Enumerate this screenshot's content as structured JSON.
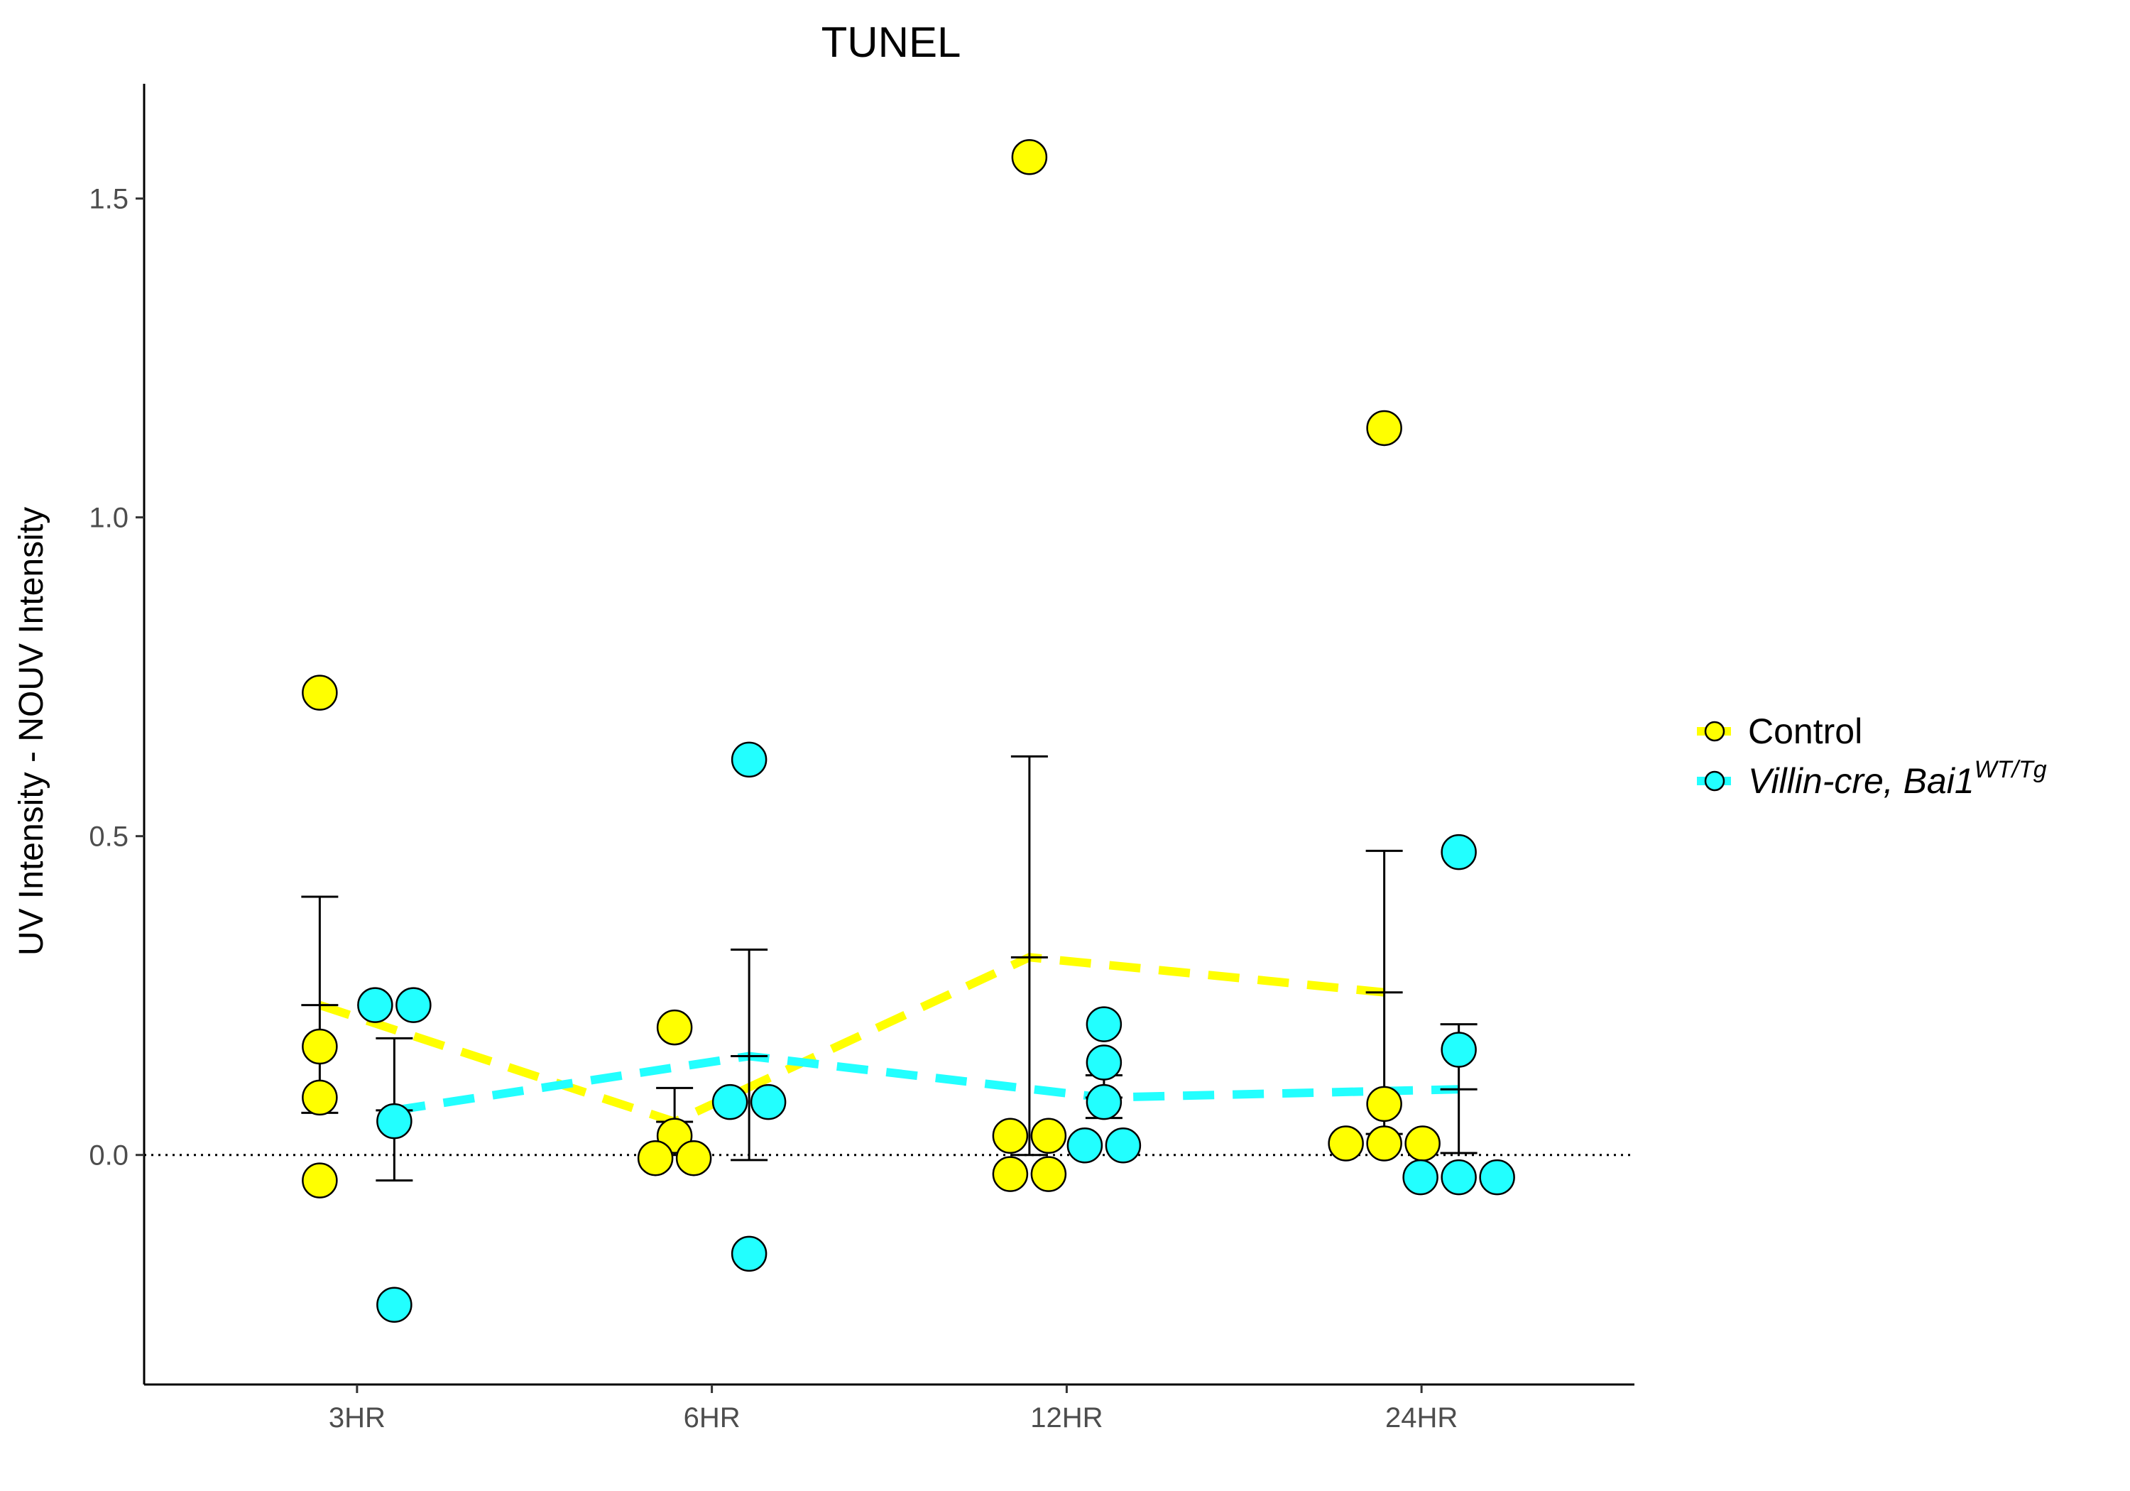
{
  "chart_data": {
    "type": "scatter",
    "title": "TUNEL",
    "xlabel": "",
    "ylabel": "UV Intensity - NOUV Intensity",
    "categories": [
      "3HR",
      "6HR",
      "12HR",
      "24HR"
    ],
    "ylim": [
      -0.36,
      1.68
    ],
    "yticks": [
      0.0,
      0.5,
      1.0,
      1.5
    ],
    "ytick_labels": [
      "0.0",
      "0.5",
      "1.0",
      "1.5"
    ],
    "reference_line": 0.0,
    "grid": false,
    "legend_position": "right",
    "series": [
      {
        "name": "Control",
        "legend_italic": false,
        "legend_sup": "",
        "color": "#FFFF00",
        "points": [
          [
            [
              0.725,
              0
            ],
            [
              0.17,
              0
            ],
            [
              0.09,
              0
            ],
            [
              -0.04,
              0
            ]
          ],
          [
            [
              0.2,
              0
            ],
            [
              0.03,
              0
            ],
            [
              -0.005,
              -1
            ],
            [
              -0.005,
              1
            ]
          ],
          [
            [
              1.565,
              0
            ],
            [
              0.03,
              -1
            ],
            [
              0.03,
              1
            ],
            [
              -0.03,
              -1
            ],
            [
              -0.03,
              1
            ]
          ],
          [
            [
              1.14,
              0
            ],
            [
              0.08,
              0
            ],
            [
              0.018,
              -2
            ],
            [
              0.018,
              0
            ],
            [
              0.018,
              2
            ]
          ]
        ],
        "mean": [
          0.235,
          0.052,
          0.31,
          0.255
        ],
        "err_low": [
          0.066,
          0.0,
          0.0,
          0.033
        ],
        "err_high": [
          0.405,
          0.105,
          0.625,
          0.477
        ]
      },
      {
        "name": "Villin-cre, Bai1",
        "legend_italic": true,
        "legend_sup": "WT/Tg",
        "color": "#22FFFF",
        "points": [
          [
            [
              0.235,
              -1
            ],
            [
              0.235,
              1
            ],
            [
              0.053,
              0
            ],
            [
              -0.235,
              0
            ]
          ],
          [
            [
              0.62,
              0
            ],
            [
              0.083,
              -1
            ],
            [
              0.083,
              1
            ],
            [
              -0.155,
              0
            ]
          ],
          [
            [
              0.205,
              0
            ],
            [
              0.145,
              0
            ],
            [
              0.083,
              0
            ],
            [
              0.015,
              -1
            ],
            [
              0.015,
              1
            ]
          ],
          [
            [
              0.475,
              0
            ],
            [
              0.165,
              0
            ],
            [
              -0.035,
              -2
            ],
            [
              -0.035,
              0
            ],
            [
              -0.035,
              2
            ]
          ]
        ],
        "mean": [
          0.07,
          0.155,
          0.09,
          0.103
        ],
        "err_low": [
          -0.04,
          -0.008,
          0.058,
          0.003
        ],
        "err_high": [
          0.183,
          0.322,
          0.125,
          0.205
        ]
      }
    ]
  }
}
